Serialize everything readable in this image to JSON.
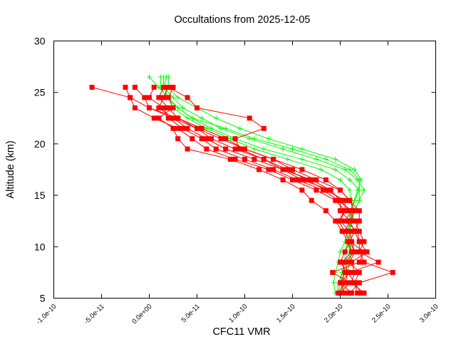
{
  "chart_data": {
    "type": "line",
    "title": "Occultations from 2025-12-05",
    "xlabel": "CFC11 VMR",
    "ylabel": "Altitude (km)",
    "xlim": [
      -1e-10,
      3e-10
    ],
    "ylim": [
      5,
      30
    ],
    "x_ticks": [
      "-1.0e-10",
      "-5.0e-11",
      "0.0e+00",
      "5.0e-11",
      "1.0e-10",
      "1.5e-10",
      "2.0e-10",
      "2.5e-10",
      "3.0e-10"
    ],
    "x_tick_values": [
      -1e-10,
      -5e-11,
      0,
      5e-11,
      1e-10,
      1.5e-10,
      2e-10,
      2.5e-10,
      3e-10
    ],
    "y_ticks": [
      "5",
      "10",
      "15",
      "20",
      "25",
      "30"
    ],
    "y_tick_values": [
      5,
      10,
      15,
      20,
      25,
      30
    ],
    "grid": false,
    "colors": {
      "red_series": "#ff0000",
      "green_series": "#00ff00"
    },
    "red_altitudes": [
      25.5,
      24.5,
      23.5,
      22.5,
      21.5,
      20.5,
      19.5,
      18.5,
      17.5,
      16.5,
      15.5,
      14.5,
      13.5,
      12.5,
      11.5,
      10.5,
      9.5,
      8.5,
      7.5,
      6.5,
      5.5
    ],
    "green_altitudes": [
      26.5,
      25.5,
      24.5,
      23.5,
      22.5,
      21.5,
      20.5,
      19.5,
      18.5,
      17.5,
      16.5,
      15.5,
      14.5,
      13.5,
      12.5,
      11.5,
      10.5,
      9.5,
      8.5,
      7.5,
      6.5,
      5.5
    ],
    "red_series": [
      [
        -6e-11,
        -2e-11,
        0.0,
        3e-11,
        5.5e-11,
        8e-11,
        1e-10,
        1.3e-10,
        1.6e-10,
        1.85e-10,
        2e-10,
        2.1e-10,
        2.15e-10,
        2.1e-10,
        2.15e-10,
        2.2e-10,
        2.2e-10,
        2.25e-10,
        2.55e-10,
        2.2e-10,
        2.1e-10
      ],
      [
        -2.5e-11,
        -2e-11,
        -1.5e-11,
        5e-12,
        3e-11,
        4.5e-11,
        6e-11,
        9e-11,
        1.25e-10,
        1.5e-10,
        1.75e-10,
        1.95e-10,
        2.05e-10,
        2e-10,
        2.1e-10,
        2.12e-10,
        2.15e-10,
        2.05e-10,
        2.08e-10,
        2.15e-10,
        2.22e-10
      ],
      [
        -1.5e-11,
        -5e-12,
        0.0,
        2.5e-11,
        4e-11,
        6e-11,
        8e-11,
        1.1e-10,
        1.4e-10,
        1.7e-10,
        1.9e-10,
        2e-10,
        2.1e-10,
        2.15e-10,
        2.2e-10,
        2.25e-10,
        2.2e-10,
        2.4e-10,
        2.1e-10,
        2e-10,
        2.05e-10
      ],
      [
        1.5e-11,
        1e-11,
        2e-11,
        3e-11,
        5e-11,
        7.5e-11,
        1e-10,
        1.3e-10,
        1.5e-10,
        1.75e-10,
        2e-10,
        2.1e-10,
        2.2e-10,
        2.2e-10,
        2.15e-10,
        2.1e-10,
        2.25e-10,
        2.2e-10,
        1.92e-10,
        2.1e-10,
        2e-10
      ],
      [
        2e-11,
        4e-11,
        5e-11,
        1.05e-10,
        1.2e-10,
        9e-11,
        9.5e-11,
        1.2e-10,
        1.45e-10,
        1.65e-10,
        1.85e-10,
        2.05e-10,
        2.05e-10,
        1.98e-10,
        2.05e-10,
        2.1e-10,
        2.15e-10,
        2.1e-10,
        2.2e-10,
        2.15e-10,
        2.18e-10
      ],
      [
        2.5e-11,
        2e-11,
        2.5e-11,
        1e-11,
        2.5e-11,
        3e-11,
        4e-11,
        8.5e-11,
        1.15e-10,
        1.4e-10,
        1.6e-10,
        1.7e-10,
        1.85e-10,
        1.95e-10,
        2.02e-10,
        2.08e-10,
        2.12e-10,
        2.02e-10,
        2.05e-10,
        2e-10,
        2.12e-10
      ],
      [
        5e-12,
        0.0,
        1.5e-11,
        2e-11,
        3.5e-11,
        5.5e-11,
        7e-11,
        1e-10,
        1.3e-10,
        1.55e-10,
        1.82e-10,
        1.98e-10,
        2.12e-10,
        2.05e-10,
        2.18e-10,
        2.2e-10,
        2.28e-10,
        2.12e-10,
        2.15e-10,
        2.12e-10,
        2.25e-10
      ],
      [
        2e-11,
        1.5e-11,
        1e-11,
        2.5e-11,
        5e-11,
        6.5e-11,
        9e-11,
        1.2e-10,
        1.4e-10,
        1.6e-10,
        1.9e-10,
        2e-10,
        2e-10,
        2.1e-10,
        2.05e-10,
        2.1e-10,
        2.05e-10,
        2e-10,
        2.08e-10,
        2.05e-10,
        1.98e-10
      ]
    ],
    "green_series": [
      [
        0.0,
        1e-11,
        2e-11,
        3e-11,
        4.5e-11,
        6.5e-11,
        9e-11,
        1.2e-10,
        1.6e-10,
        1.95e-10,
        2.1e-10,
        2.2e-10,
        2.2e-10,
        2.15e-10,
        2.1e-10,
        2.1e-10,
        2.1e-10,
        2.12e-10,
        2.1e-10,
        2.08e-10,
        2.05e-10,
        2e-10
      ],
      [
        1.5e-11,
        1.5e-11,
        2.5e-11,
        3.5e-11,
        5.5e-11,
        7.5e-11,
        1.05e-10,
        1.4e-10,
        1.75e-10,
        2.05e-10,
        2.18e-10,
        2.25e-10,
        2.2e-10,
        2.15e-10,
        2.12e-10,
        2.1e-10,
        2.08e-10,
        2.05e-10,
        2.05e-10,
        2.02e-10,
        1.98e-10,
        1.97e-10
      ],
      [
        1.2e-11,
        1.2e-11,
        1.8e-11,
        3e-11,
        4.5e-11,
        8e-11,
        1.1e-10,
        1.5e-10,
        1.85e-10,
        2.1e-10,
        2.2e-10,
        2.2e-10,
        2.15e-10,
        2.12e-10,
        2.1e-10,
        2.1e-10,
        2.08e-10,
        2.1e-10,
        2.1e-10,
        2.05e-10,
        2.02e-10,
        2e-10
      ],
      [
        2e-11,
        2e-11,
        3e-11,
        5e-11,
        7e-11,
        9.5e-11,
        1.25e-10,
        1.6e-10,
        1.95e-10,
        2.15e-10,
        2.22e-10,
        2.18e-10,
        2.15e-10,
        2.1e-10,
        2.1e-10,
        2.08e-10,
        2.05e-10,
        2e-10,
        1.98e-10,
        1.95e-10,
        1.93e-10,
        1.95e-10
      ],
      [
        1.8e-11,
        1.5e-11,
        2e-11,
        2.5e-11,
        4e-11,
        6e-11,
        8.5e-11,
        1.1e-10,
        1.45e-10,
        1.8e-10,
        2e-10,
        2.1e-10,
        2.12e-10,
        2.12e-10,
        2.1e-10,
        2.1e-10,
        2.1e-10,
        2.1e-10,
        2.05e-10,
        2.02e-10,
        2e-10,
        1.98e-10
      ]
    ]
  }
}
